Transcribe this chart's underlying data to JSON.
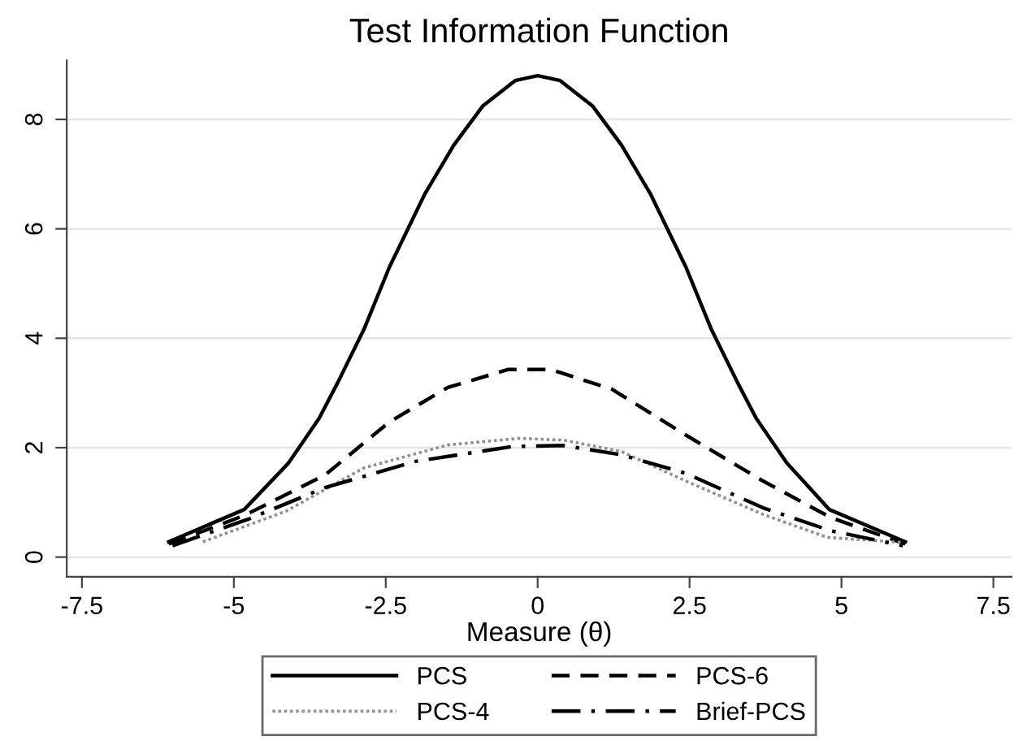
{
  "chart_data": {
    "type": "line",
    "title": "Test Information Function",
    "xlabel": "Measure (θ)",
    "xlim": [
      -7.75,
      7.8
    ],
    "xticks": [
      -7.5,
      -5,
      -2.5,
      0,
      2.5,
      5,
      7.5
    ],
    "ylim": [
      -0.36,
      9.08
    ],
    "yticks": [
      0,
      2,
      4,
      6,
      8
    ],
    "grid": "y",
    "legend": "bottom",
    "marker": "none",
    "series": [
      {
        "name": "PCS",
        "color": "#000000",
        "line_style": "solid",
        "x": [
          -6.07,
          -4.83,
          -4.1,
          -3.6,
          -3.29,
          -2.86,
          -2.44,
          -1.86,
          -1.38,
          -0.9,
          -0.37,
          0,
          0.37,
          0.9,
          1.38,
          1.86,
          2.44,
          2.86,
          3.29,
          3.6,
          4.1,
          4.8,
          6.05
        ],
        "values": [
          0.28,
          0.87,
          1.72,
          2.53,
          3.19,
          4.16,
          5.3,
          6.63,
          7.53,
          8.25,
          8.71,
          8.8,
          8.71,
          8.25,
          7.53,
          6.63,
          5.3,
          4.16,
          3.19,
          2.53,
          1.72,
          0.87,
          0.28
        ]
      },
      {
        "name": "PCS-6",
        "color": "#000000",
        "line_style": "dashed",
        "x": [
          -6.07,
          -4.83,
          -3.5,
          -2.44,
          -1.48,
          -0.48,
          0.21,
          1.22,
          2.44,
          3.71,
          4.83,
          6.05
        ],
        "values": [
          0.24,
          0.76,
          1.5,
          2.47,
          3.1,
          3.43,
          3.43,
          3.07,
          2.23,
          1.39,
          0.72,
          0.24
        ]
      },
      {
        "name": "PCS-4",
        "color": "#909090",
        "line_style": "dotted",
        "x": [
          -5.51,
          -4.14,
          -2.86,
          -1.48,
          -0.32,
          0.42,
          1.38,
          2.44,
          3.71,
          4.77,
          5.98
        ],
        "values": [
          0.28,
          0.84,
          1.63,
          2.05,
          2.17,
          2.14,
          1.93,
          1.39,
          0.78,
          0.36,
          0.27
        ]
      },
      {
        "name": "Brief-PCS",
        "color": "#000000",
        "line_style": "dashdot",
        "x": [
          -6.01,
          -4.77,
          -3.5,
          -2.01,
          -0.42,
          0.42,
          1.38,
          2.44,
          3.71,
          4.83,
          6.01
        ],
        "values": [
          0.21,
          0.69,
          1.27,
          1.75,
          2.02,
          2.04,
          1.87,
          1.53,
          0.9,
          0.48,
          0.21
        ]
      }
    ]
  }
}
